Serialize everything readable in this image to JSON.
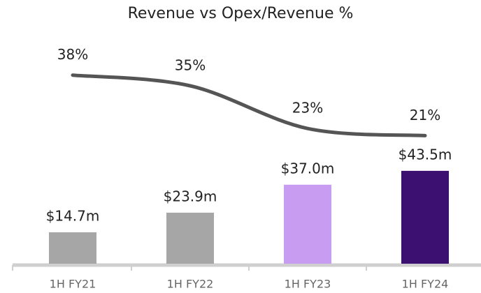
{
  "chart_data": {
    "type": "bar",
    "title": "Revenue vs Opex/Revenue %",
    "categories": [
      "1H FY21",
      "1H FY22",
      "1H FY23",
      "1H FY24"
    ],
    "series": [
      {
        "type": "bar",
        "values": [
          14.7,
          23.9,
          37.0,
          43.5
        ],
        "value_labels": [
          "$14.7m",
          "$23.9m",
          "$37.0m",
          "$43.5m"
        ],
        "colors": [
          "#a6a6a6",
          "#a6a6a6",
          "#c89cf0",
          "#3c1070"
        ]
      },
      {
        "type": "line",
        "axis": "y2",
        "color": "#555555",
        "values": [
          38,
          35,
          23,
          21
        ],
        "value_labels": [
          "38%",
          "35%",
          "23%",
          "21%"
        ]
      }
    ],
    "ylim": [
      0,
      100
    ],
    "y2lim": [
      -15,
      45
    ]
  }
}
